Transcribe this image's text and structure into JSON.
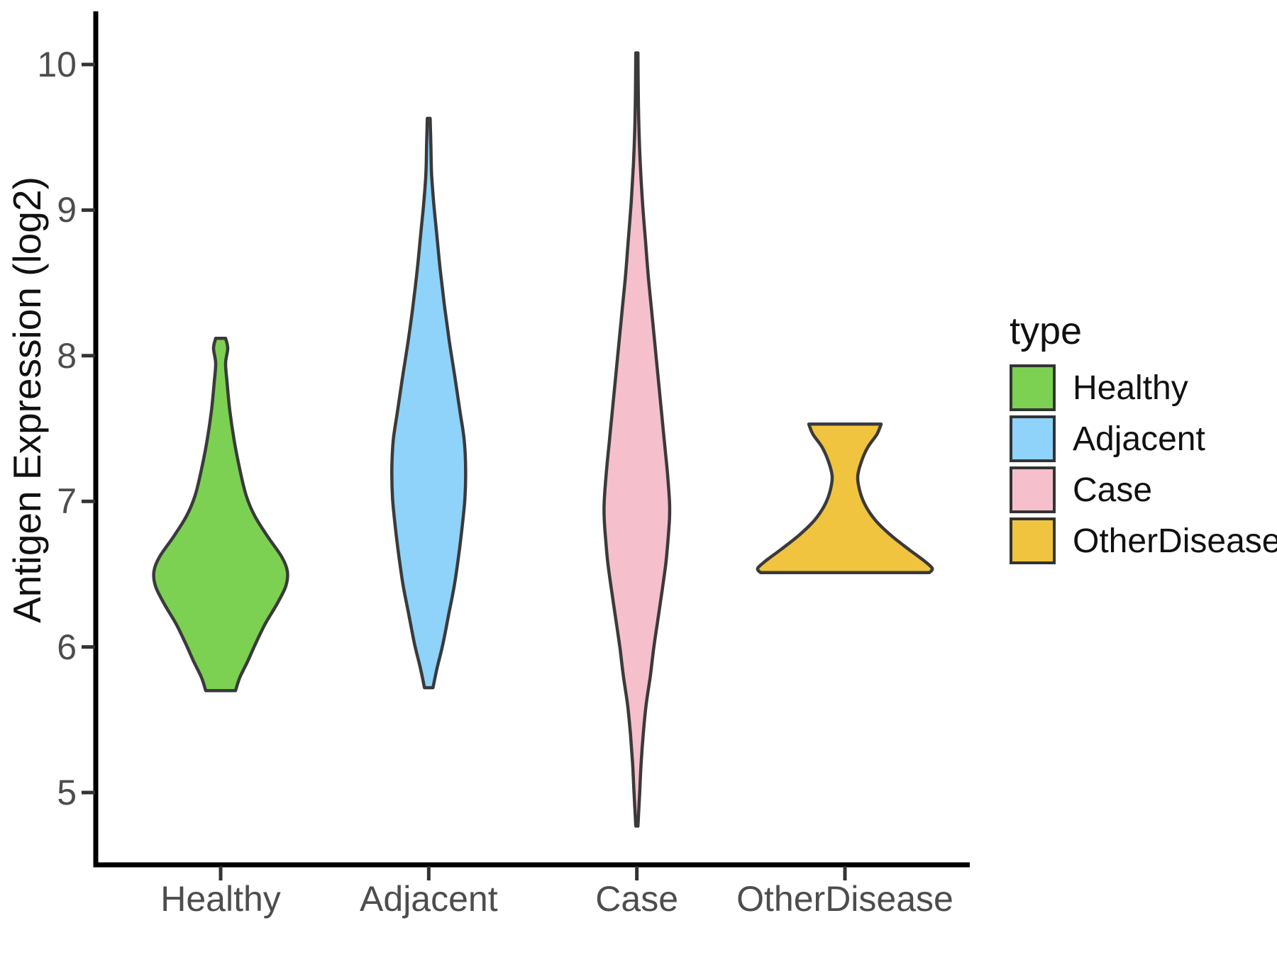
{
  "chart_data": {
    "type": "violin",
    "title": "",
    "xlabel": "",
    "ylabel": "Antigen Expression (log2)",
    "categories": [
      "Healthy",
      "Adjacent",
      "Case",
      "OtherDisease"
    ],
    "y_ticks": [
      "10",
      "9",
      "8",
      "7",
      "6",
      "5"
    ],
    "y_tick_values": [
      10,
      9,
      8,
      7,
      6,
      5
    ],
    "ylim": [
      4.45,
      10.35
    ],
    "grid": false,
    "background": "#FFFFFF",
    "axis_line_color": "#000000",
    "tick_color": "#333333",
    "axis_text_color": "#4D4D4D",
    "outline_color": "#3A3A3A",
    "legend": {
      "title": "type",
      "position": "right",
      "entries": [
        {
          "label": "Healthy",
          "color": "#7CD152"
        },
        {
          "label": "Adjacent",
          "color": "#8FD2FA"
        },
        {
          "label": "Case",
          "color": "#F5BFCB"
        },
        {
          "label": "OtherDisease",
          "color": "#F0C43E"
        }
      ]
    },
    "series": [
      {
        "name": "Healthy",
        "color": "#7CD152",
        "y_min": 5.7,
        "y_max": 8.12,
        "flat_top": true,
        "flat_bottom": true,
        "profile": [
          [
            8.12,
            7
          ],
          [
            8.05,
            10
          ],
          [
            7.95,
            7
          ],
          [
            7.82,
            9
          ],
          [
            7.62,
            13
          ],
          [
            7.42,
            19
          ],
          [
            7.22,
            27
          ],
          [
            7.04,
            36
          ],
          [
            6.9,
            48
          ],
          [
            6.76,
            66
          ],
          [
            6.62,
            86
          ],
          [
            6.52,
            94
          ],
          [
            6.42,
            92
          ],
          [
            6.3,
            80
          ],
          [
            6.16,
            63
          ],
          [
            6.02,
            49
          ],
          [
            5.9,
            38
          ],
          [
            5.79,
            27
          ],
          [
            5.7,
            21
          ]
        ]
      },
      {
        "name": "Adjacent",
        "color": "#8FD2FA",
        "y_min": 5.72,
        "y_max": 9.63,
        "flat_top": false,
        "flat_bottom": true,
        "profile": [
          [
            9.63,
            2
          ],
          [
            9.45,
            3
          ],
          [
            9.25,
            4
          ],
          [
            9.05,
            7
          ],
          [
            8.85,
            11
          ],
          [
            8.6,
            16
          ],
          [
            8.35,
            22
          ],
          [
            8.1,
            29
          ],
          [
            7.85,
            37
          ],
          [
            7.62,
            44
          ],
          [
            7.42,
            50
          ],
          [
            7.22,
            52
          ],
          [
            7.02,
            51
          ],
          [
            6.82,
            47
          ],
          [
            6.62,
            42
          ],
          [
            6.42,
            36
          ],
          [
            6.22,
            28
          ],
          [
            6.02,
            20
          ],
          [
            5.86,
            12
          ],
          [
            5.72,
            6
          ]
        ]
      },
      {
        "name": "Case",
        "color": "#F5BFCB",
        "y_min": 4.77,
        "y_max": 10.08,
        "flat_top": false,
        "flat_bottom": false,
        "profile": [
          [
            10.08,
            1.5
          ],
          [
            9.8,
            2
          ],
          [
            9.55,
            3
          ],
          [
            9.3,
            5
          ],
          [
            9.05,
            8
          ],
          [
            8.8,
            12
          ],
          [
            8.55,
            16
          ],
          [
            8.3,
            21
          ],
          [
            8.05,
            26
          ],
          [
            7.8,
            31
          ],
          [
            7.6,
            35
          ],
          [
            7.4,
            39
          ],
          [
            7.2,
            43
          ],
          [
            7.0,
            46
          ],
          [
            6.88,
            46
          ],
          [
            6.74,
            44
          ],
          [
            6.58,
            41
          ],
          [
            6.4,
            36
          ],
          [
            6.2,
            30
          ],
          [
            6.0,
            24
          ],
          [
            5.8,
            19
          ],
          [
            5.6,
            13
          ],
          [
            5.4,
            9
          ],
          [
            5.2,
            6
          ],
          [
            5.0,
            4
          ],
          [
            4.77,
            1.5
          ]
        ]
      },
      {
        "name": "OtherDisease",
        "color": "#F0C43E",
        "y_min": 6.51,
        "y_max": 7.53,
        "flat_top": true,
        "flat_bottom": true,
        "profile": [
          [
            7.53,
            51
          ],
          [
            7.46,
            45
          ],
          [
            7.37,
            32
          ],
          [
            7.27,
            23
          ],
          [
            7.17,
            18
          ],
          [
            7.07,
            21
          ],
          [
            6.97,
            29
          ],
          [
            6.87,
            43
          ],
          [
            6.77,
            64
          ],
          [
            6.67,
            90
          ],
          [
            6.59,
            112
          ],
          [
            6.54,
            123
          ],
          [
            6.51,
            119
          ]
        ]
      }
    ]
  }
}
